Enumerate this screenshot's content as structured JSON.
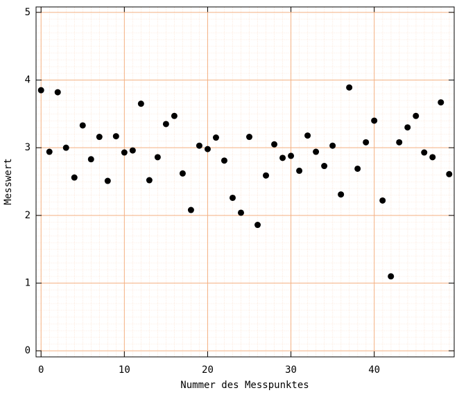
{
  "chart_data": {
    "type": "scatter",
    "x_label": "Nummer des Messpunktes",
    "y_label": "Messwert",
    "x": [
      0,
      1,
      2,
      3,
      4,
      5,
      6,
      7,
      8,
      9,
      10,
      11,
      12,
      13,
      14,
      15,
      16,
      17,
      18,
      19,
      20,
      21,
      22,
      23,
      24,
      25,
      26,
      27,
      28,
      29,
      30,
      31,
      32,
      33,
      34,
      35,
      36,
      37,
      38,
      39,
      40,
      41,
      42,
      43,
      44,
      45,
      46,
      47,
      48,
      49
    ],
    "values": [
      3.85,
      2.94,
      3.82,
      3.0,
      2.56,
      3.33,
      2.83,
      3.16,
      2.51,
      3.17,
      2.93,
      2.96,
      3.65,
      2.52,
      2.86,
      3.35,
      3.47,
      2.62,
      2.08,
      3.03,
      2.98,
      3.15,
      2.81,
      2.26,
      2.04,
      3.16,
      1.86,
      2.59,
      3.05,
      2.85,
      2.88,
      2.66,
      3.18,
      2.94,
      2.73,
      3.03,
      2.31,
      3.89,
      2.69,
      3.08,
      3.4,
      2.22,
      1.1,
      3.08,
      3.3,
      3.47,
      2.93,
      2.86,
      3.67,
      2.61
    ],
    "color": "#000000",
    "xlim": [
      -0.6,
      49.6
    ],
    "ylim": [
      -0.09,
      5.08
    ],
    "xticks": [
      0,
      10,
      20,
      30,
      40
    ],
    "yticks": [
      0,
      1,
      2,
      3,
      4,
      5
    ],
    "grid": true,
    "grid_color": "#f4b183"
  }
}
